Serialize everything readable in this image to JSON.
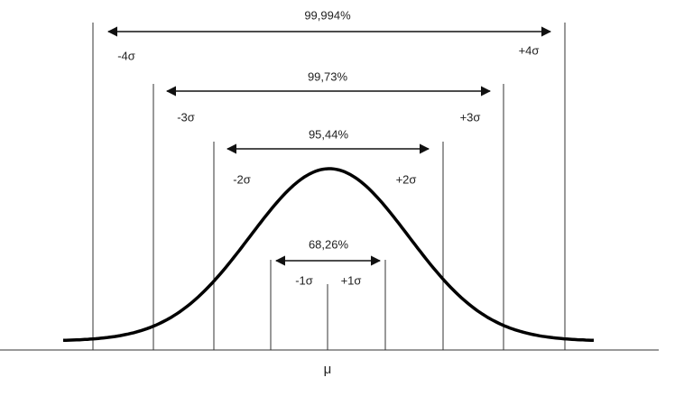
{
  "intervals": [
    {
      "label": "99,994%",
      "left": "-4σ",
      "right": "+4σ"
    },
    {
      "label": "99,73%",
      "left": "-3σ",
      "right": "+3σ"
    },
    {
      "label": "95,44%",
      "left": "-2σ",
      "right": "+2σ"
    },
    {
      "label": "68,26%",
      "left": "-1σ",
      "right": "+1σ"
    }
  ],
  "mean_label": "μ"
}
